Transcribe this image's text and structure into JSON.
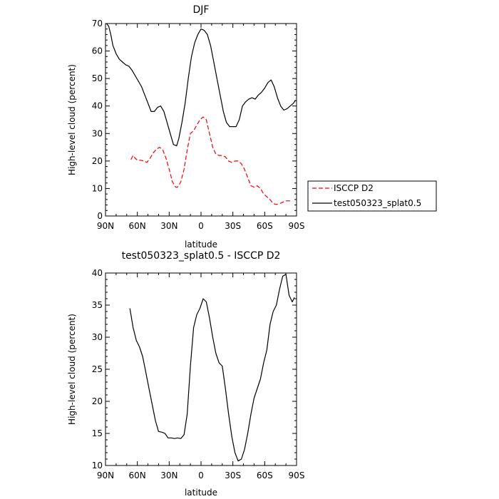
{
  "chart_data": [
    {
      "type": "line",
      "title": "DJF",
      "xlabel": "latitude",
      "ylabel": "High-level cloud (percent)",
      "xlim": [
        90,
        -90
      ],
      "ylim": [
        0,
        70
      ],
      "xticks": [
        90,
        60,
        30,
        0,
        -30,
        -60,
        -90
      ],
      "xtick_labels": [
        "90N",
        "60N",
        "30N",
        "0",
        "30S",
        "60S",
        "90S"
      ],
      "yticks": [
        0,
        10,
        20,
        30,
        40,
        50,
        60,
        70
      ],
      "ytick_labels": [
        "0",
        "10",
        "20",
        "30",
        "40",
        "50",
        "60",
        "70"
      ],
      "legend": "right",
      "series": [
        {
          "name": "ISCCP D2",
          "color": "#ff0000",
          "dash": "dashed",
          "x": [
            66,
            64,
            62,
            60,
            57,
            54,
            51,
            48,
            45,
            42,
            39,
            36,
            33,
            30,
            27,
            24,
            22,
            19,
            16,
            13,
            10,
            7,
            4,
            1,
            -2,
            -5,
            -8,
            -11,
            -14,
            -17,
            -20,
            -23,
            -26,
            -29,
            -32,
            -35,
            -38,
            -41,
            -44,
            -47,
            -50,
            -53,
            -56,
            -59,
            -62,
            -65,
            -68,
            -71,
            -74,
            -77,
            -80,
            -83,
            -86
          ],
          "y": [
            20.5,
            22,
            21,
            20.3,
            20.3,
            20,
            19.5,
            21,
            23,
            24.3,
            25,
            24,
            21,
            17,
            12.5,
            10.5,
            10.5,
            12.5,
            17,
            24,
            30,
            31,
            33,
            35,
            36,
            35,
            30,
            25,
            22.5,
            22,
            22,
            21.5,
            20,
            19.5,
            20,
            20,
            19,
            17,
            14,
            11,
            10.5,
            11,
            10,
            8,
            7,
            6,
            4.5,
            4.2,
            4.5,
            5,
            5.5,
            5.5,
            5.5
          ]
        },
        {
          "name": "test050323_splat0.5",
          "color": "#000000",
          "dash": "solid",
          "x": [
            89,
            87,
            85,
            83,
            80,
            77,
            74,
            71,
            68,
            65,
            62,
            59,
            56,
            53,
            50,
            47,
            44,
            41,
            38,
            35,
            32,
            29,
            26,
            23,
            21,
            18,
            15,
            12,
            9,
            6,
            3,
            0,
            -3,
            -6,
            -9,
            -12,
            -15,
            -18,
            -21,
            -24,
            -27,
            -30,
            -33,
            -36,
            -39,
            -42,
            -45,
            -48,
            -51,
            -54,
            -57,
            -60,
            -63,
            -66,
            -69,
            -72,
            -75,
            -78,
            -81,
            -84,
            -87,
            -89
          ],
          "y": [
            70,
            69,
            66,
            62,
            59,
            57,
            56,
            55,
            54.5,
            53,
            51,
            49,
            47,
            44,
            41,
            38,
            38,
            39.5,
            40,
            38,
            34,
            30,
            26,
            25.5,
            28,
            34,
            41,
            50,
            58,
            63,
            66,
            68,
            67.5,
            66,
            62,
            56,
            50,
            44,
            38,
            34,
            32.5,
            32.5,
            32.5,
            35,
            40,
            41.5,
            42.5,
            43,
            42.5,
            44,
            45,
            46.5,
            48.5,
            49.5,
            47,
            43,
            40,
            38.5,
            39,
            40,
            41,
            42
          ]
        }
      ]
    },
    {
      "type": "line",
      "title": "test050323_splat0.5 - ISCCP D2",
      "xlabel": "latitude",
      "ylabel": "High-level cloud (percent)",
      "xlim": [
        90,
        -90
      ],
      "ylim": [
        10,
        40
      ],
      "xticks": [
        90,
        60,
        30,
        0,
        -30,
        -60,
        -90
      ],
      "xtick_labels": [
        "90N",
        "60N",
        "30N",
        "0",
        "30S",
        "60S",
        "90S"
      ],
      "yticks": [
        10,
        15,
        20,
        25,
        30,
        35,
        40
      ],
      "ytick_labels": [
        "10",
        "15",
        "20",
        "25",
        "30",
        "35",
        "40"
      ],
      "series": [
        {
          "color": "#000000",
          "dash": "solid",
          "x": [
            67,
            64,
            61,
            58,
            55,
            52,
            49,
            46,
            43,
            40,
            37,
            34,
            31,
            28,
            25,
            22,
            19,
            16,
            13,
            10,
            7,
            4,
            1,
            -2,
            -5,
            -8,
            -11,
            -14,
            -17,
            -20,
            -23,
            -26,
            -29,
            -32,
            -35,
            -38,
            -41,
            -44,
            -47,
            -50,
            -53,
            -56,
            -59,
            -62,
            -65,
            -68,
            -71,
            -74,
            -77,
            -80,
            -83,
            -86,
            -88
          ],
          "y": [
            34.5,
            31.5,
            29.5,
            28.5,
            27,
            24.5,
            22,
            19.5,
            17,
            15.3,
            15.2,
            15,
            14.3,
            14.3,
            14.2,
            14.3,
            14.2,
            14.8,
            18,
            25.5,
            31.5,
            33.5,
            34.5,
            36,
            35.5,
            33,
            30,
            27.5,
            26,
            25.5,
            22,
            18,
            14.5,
            12,
            10.7,
            11,
            12.5,
            15,
            18,
            20.5,
            22,
            23.5,
            26,
            28,
            32,
            34,
            35,
            37.5,
            39.5,
            39.8,
            36.5,
            35.5,
            36.2
          ]
        }
      ]
    }
  ]
}
